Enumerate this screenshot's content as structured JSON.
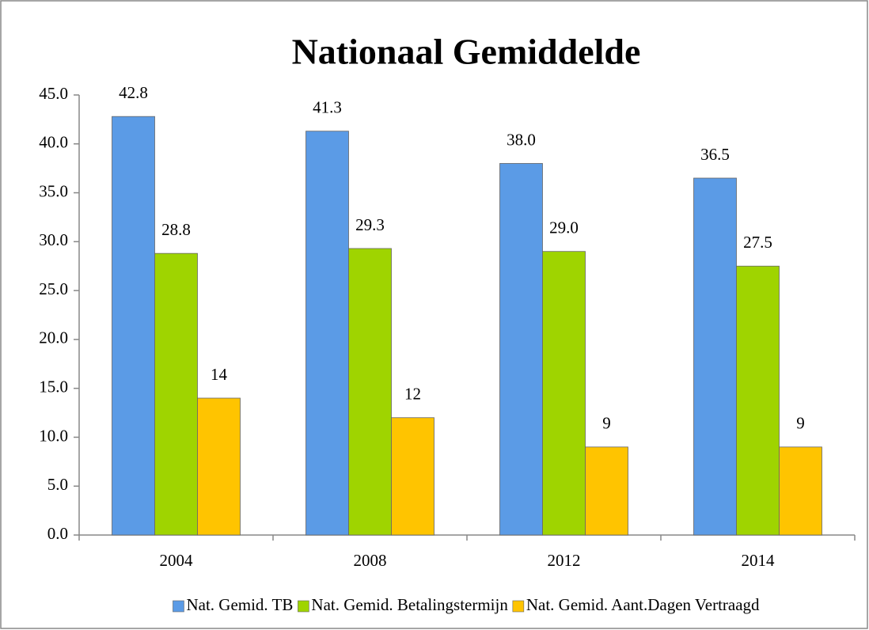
{
  "chart_data": {
    "type": "bar",
    "title": "Nationaal Gemiddelde",
    "categories": [
      "2004",
      "2008",
      "2012",
      "2014"
    ],
    "series": [
      {
        "name": "Nat. Gemid. TB",
        "color": "#5b9be6",
        "values": [
          42.8,
          41.3,
          38.0,
          36.5
        ],
        "value_labels": [
          "42.8",
          "41.3",
          "38.0",
          "36.5"
        ]
      },
      {
        "name": "Nat. Gemid. Betalingstermijn",
        "color": "#9fd400",
        "values": [
          28.8,
          29.3,
          29.0,
          27.5
        ],
        "value_labels": [
          "28.8",
          "29.3",
          "29.0",
          "27.5"
        ]
      },
      {
        "name": "Nat. Gemid. Aant.Dagen Vertraagd",
        "color": "#ffc400",
        "values": [
          14,
          12,
          9,
          9
        ]
      }
    ],
    "ylim": [
      0,
      45
    ],
    "yticks": [
      {
        "value": 0,
        "label": "0.0"
      },
      {
        "value": 5,
        "label": "5.0"
      },
      {
        "value": 10,
        "label": "10.0"
      },
      {
        "value": 15,
        "label": "15.0"
      },
      {
        "value": 20,
        "label": "20.0"
      },
      {
        "value": 25,
        "label": "25.0"
      },
      {
        "value": 30,
        "label": "30.0"
      },
      {
        "value": 35,
        "label": "35.0"
      },
      {
        "value": 40,
        "label": "40.0"
      },
      {
        "value": 45,
        "label": "45.0"
      }
    ],
    "grid": false,
    "legend": "bottom"
  }
}
